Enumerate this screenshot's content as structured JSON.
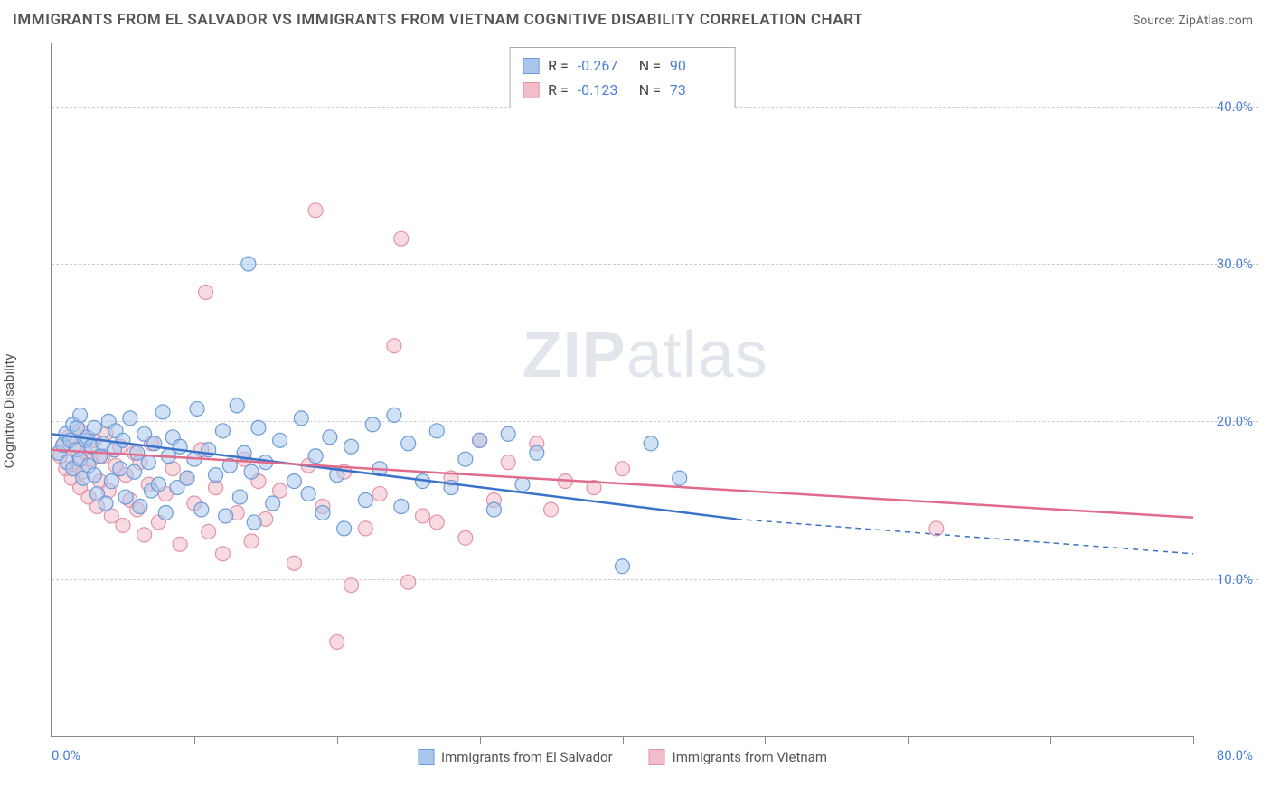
{
  "title": "IMMIGRANTS FROM EL SALVADOR VS IMMIGRANTS FROM VIETNAM COGNITIVE DISABILITY CORRELATION CHART",
  "source": "Source: ZipAtlas.com",
  "y_axis_label": "Cognitive Disability",
  "watermark_bold": "ZIP",
  "watermark_rest": "atlas",
  "chart": {
    "type": "scatter",
    "xlim": [
      0,
      80
    ],
    "ylim": [
      0,
      44
    ],
    "x_tick_positions": [
      0,
      10,
      20,
      30,
      40,
      50,
      60,
      70,
      80
    ],
    "y_gridlines": [
      10,
      20,
      30,
      40
    ],
    "y_tick_labels": [
      "10.0%",
      "20.0%",
      "30.0%",
      "40.0%"
    ],
    "x_left_label": "0.0%",
    "x_right_label": "80.0%",
    "background_color": "#ffffff",
    "grid_color": "#cccccc",
    "axis_color": "#888888",
    "tick_label_color": "#4a7fd8",
    "series": [
      {
        "name": "Immigrants from El Salvador",
        "fill": "#a9c6ec",
        "stroke": "#6b9bd8",
        "fill_opacity": 0.55,
        "marker_radius": 8,
        "line_color": "#3b73c9",
        "line_width": 2.5,
        "R": "-0.267",
        "N": "90",
        "trend": {
          "x1": 0,
          "y1": 19.2,
          "x2": 48,
          "y2": 13.8,
          "dash_to_x": 80,
          "dash_to_y": 11.6
        },
        "points": [
          [
            0.5,
            18.0
          ],
          [
            0.8,
            18.5
          ],
          [
            1.0,
            19.2
          ],
          [
            1.1,
            17.4
          ],
          [
            1.3,
            18.8
          ],
          [
            1.5,
            19.8
          ],
          [
            1.5,
            17.0
          ],
          [
            1.8,
            18.2
          ],
          [
            1.8,
            19.6
          ],
          [
            2.0,
            17.6
          ],
          [
            2.0,
            20.4
          ],
          [
            2.2,
            16.4
          ],
          [
            2.4,
            18.8
          ],
          [
            2.5,
            19.0
          ],
          [
            2.6,
            17.2
          ],
          [
            2.8,
            18.4
          ],
          [
            3.0,
            19.6
          ],
          [
            3.0,
            16.6
          ],
          [
            3.2,
            15.4
          ],
          [
            3.4,
            17.8
          ],
          [
            3.6,
            18.6
          ],
          [
            3.8,
            14.8
          ],
          [
            4.0,
            20.0
          ],
          [
            4.2,
            16.2
          ],
          [
            4.4,
            18.2
          ],
          [
            4.5,
            19.4
          ],
          [
            4.8,
            17.0
          ],
          [
            5.0,
            18.8
          ],
          [
            5.2,
            15.2
          ],
          [
            5.5,
            20.2
          ],
          [
            5.8,
            16.8
          ],
          [
            6.0,
            18.0
          ],
          [
            6.2,
            14.6
          ],
          [
            6.5,
            19.2
          ],
          [
            6.8,
            17.4
          ],
          [
            7.0,
            15.6
          ],
          [
            7.2,
            18.6
          ],
          [
            7.5,
            16.0
          ],
          [
            7.8,
            20.6
          ],
          [
            8.0,
            14.2
          ],
          [
            8.2,
            17.8
          ],
          [
            8.5,
            19.0
          ],
          [
            8.8,
            15.8
          ],
          [
            9.0,
            18.4
          ],
          [
            9.5,
            16.4
          ],
          [
            10.0,
            17.6
          ],
          [
            10.2,
            20.8
          ],
          [
            10.5,
            14.4
          ],
          [
            11.0,
            18.2
          ],
          [
            11.5,
            16.6
          ],
          [
            12.0,
            19.4
          ],
          [
            12.2,
            14.0
          ],
          [
            12.5,
            17.2
          ],
          [
            13.0,
            21.0
          ],
          [
            13.2,
            15.2
          ],
          [
            13.5,
            18.0
          ],
          [
            14.0,
            16.8
          ],
          [
            14.2,
            13.6
          ],
          [
            14.5,
            19.6
          ],
          [
            15.0,
            17.4
          ],
          [
            15.5,
            14.8
          ],
          [
            16.0,
            18.8
          ],
          [
            13.8,
            30.0
          ],
          [
            17.0,
            16.2
          ],
          [
            17.5,
            20.2
          ],
          [
            18.0,
            15.4
          ],
          [
            18.5,
            17.8
          ],
          [
            19.0,
            14.2
          ],
          [
            19.5,
            19.0
          ],
          [
            20.0,
            16.6
          ],
          [
            20.5,
            13.2
          ],
          [
            21.0,
            18.4
          ],
          [
            22.0,
            15.0
          ],
          [
            22.5,
            19.8
          ],
          [
            23.0,
            17.0
          ],
          [
            24.0,
            20.4
          ],
          [
            24.5,
            14.6
          ],
          [
            25.0,
            18.6
          ],
          [
            26.0,
            16.2
          ],
          [
            27.0,
            19.4
          ],
          [
            28.0,
            15.8
          ],
          [
            29.0,
            17.6
          ],
          [
            30.0,
            18.8
          ],
          [
            31.0,
            14.4
          ],
          [
            32.0,
            19.2
          ],
          [
            33.0,
            16.0
          ],
          [
            34.0,
            18.0
          ],
          [
            40.0,
            10.8
          ],
          [
            42.0,
            18.6
          ],
          [
            44.0,
            16.4
          ]
        ]
      },
      {
        "name": "Immigrants from Vietnam",
        "fill": "#f2bcc8",
        "stroke": "#e493a7",
        "fill_opacity": 0.55,
        "marker_radius": 8,
        "line_color": "#e06b8a",
        "line_width": 2.5,
        "R": "-0.123",
        "N": "73",
        "trend": {
          "x1": 0,
          "y1": 18.2,
          "x2": 80,
          "y2": 13.9
        },
        "points": [
          [
            0.6,
            17.8
          ],
          [
            0.9,
            18.6
          ],
          [
            1.0,
            17.0
          ],
          [
            1.2,
            19.0
          ],
          [
            1.4,
            16.4
          ],
          [
            1.6,
            18.2
          ],
          [
            1.8,
            17.4
          ],
          [
            2.0,
            15.8
          ],
          [
            2.0,
            19.4
          ],
          [
            2.2,
            16.8
          ],
          [
            2.4,
            18.0
          ],
          [
            2.6,
            15.2
          ],
          [
            2.8,
            17.6
          ],
          [
            3.0,
            18.8
          ],
          [
            3.2,
            14.6
          ],
          [
            3.4,
            16.2
          ],
          [
            3.6,
            17.8
          ],
          [
            3.8,
            19.2
          ],
          [
            4.0,
            15.6
          ],
          [
            4.2,
            14.0
          ],
          [
            4.5,
            17.2
          ],
          [
            4.8,
            18.4
          ],
          [
            5.0,
            13.4
          ],
          [
            5.2,
            16.6
          ],
          [
            5.5,
            15.0
          ],
          [
            5.8,
            18.0
          ],
          [
            6.0,
            14.4
          ],
          [
            6.2,
            17.4
          ],
          [
            6.5,
            12.8
          ],
          [
            6.8,
            16.0
          ],
          [
            7.0,
            18.6
          ],
          [
            7.5,
            13.6
          ],
          [
            8.0,
            15.4
          ],
          [
            8.5,
            17.0
          ],
          [
            9.0,
            12.2
          ],
          [
            9.5,
            16.4
          ],
          [
            10.0,
            14.8
          ],
          [
            10.5,
            18.2
          ],
          [
            11.0,
            13.0
          ],
          [
            11.5,
            15.8
          ],
          [
            12.0,
            11.6
          ],
          [
            10.8,
            28.2
          ],
          [
            13.0,
            14.2
          ],
          [
            13.5,
            17.6
          ],
          [
            14.0,
            12.4
          ],
          [
            14.5,
            16.2
          ],
          [
            15.0,
            13.8
          ],
          [
            16.0,
            15.6
          ],
          [
            17.0,
            11.0
          ],
          [
            18.0,
            17.2
          ],
          [
            18.5,
            33.4
          ],
          [
            19.0,
            14.6
          ],
          [
            20.0,
            6.0
          ],
          [
            20.5,
            16.8
          ],
          [
            21.0,
            9.6
          ],
          [
            22.0,
            13.2
          ],
          [
            23.0,
            15.4
          ],
          [
            24.0,
            24.8
          ],
          [
            24.5,
            31.6
          ],
          [
            25.0,
            9.8
          ],
          [
            26.0,
            14.0
          ],
          [
            27.0,
            13.6
          ],
          [
            28.0,
            16.4
          ],
          [
            29.0,
            12.6
          ],
          [
            30.0,
            18.8
          ],
          [
            31.0,
            15.0
          ],
          [
            32.0,
            17.4
          ],
          [
            34.0,
            18.6
          ],
          [
            35.0,
            14.4
          ],
          [
            36.0,
            16.2
          ],
          [
            62.0,
            13.2
          ],
          [
            38.0,
            15.8
          ],
          [
            40.0,
            17.0
          ]
        ]
      }
    ],
    "bottom_legend": [
      {
        "label": "Immigrants from El Salvador",
        "fill": "#a9c6ec",
        "stroke": "#6b9bd8"
      },
      {
        "label": "Immigrants from Vietnam",
        "fill": "#f2bcc8",
        "stroke": "#e493a7"
      }
    ]
  }
}
